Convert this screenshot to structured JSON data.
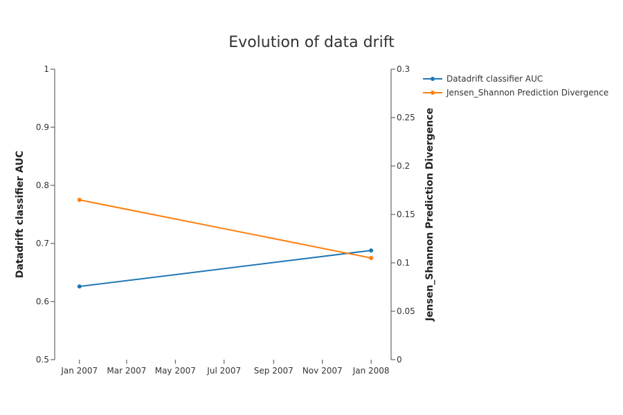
{
  "chart_data": {
    "type": "line",
    "title": "Evolution of data drift",
    "x": [
      "2007-01-01",
      "2008-01-01"
    ],
    "x_range": [
      "2006-12-01",
      "2008-01-26"
    ],
    "x_ticks": [
      {
        "date": "2007-01-01",
        "label": "Jan 2007"
      },
      {
        "date": "2007-03-01",
        "label": "Mar 2007"
      },
      {
        "date": "2007-05-01",
        "label": "May 2007"
      },
      {
        "date": "2007-07-01",
        "label": "Jul 2007"
      },
      {
        "date": "2007-09-01",
        "label": "Sep 2007"
      },
      {
        "date": "2007-11-01",
        "label": "Nov 2007"
      },
      {
        "date": "2008-01-01",
        "label": "Jan 2008"
      }
    ],
    "y_left": {
      "label": "Datadrift classifier AUC",
      "range": [
        0.5,
        1
      ],
      "ticks": [
        0.5,
        0.6,
        0.7,
        0.8,
        0.9,
        1
      ],
      "tick_labels": [
        "0.5",
        "0.6",
        "0.7",
        "0.8",
        "0.9",
        "1"
      ]
    },
    "y_right": {
      "label": "Jensen_Shannon Prediction Divergence",
      "range": [
        0,
        0.3
      ],
      "ticks": [
        0,
        0.05,
        0.1,
        0.15,
        0.2,
        0.25,
        0.3
      ],
      "tick_labels": [
        "0",
        "0.05",
        "0.1",
        "0.15",
        "0.2",
        "0.25",
        "0.3"
      ]
    },
    "series": [
      {
        "name": "Datadrift classifier AUC",
        "axis": "left",
        "color": "#1f77b4",
        "values": [
          0.626,
          0.688
        ]
      },
      {
        "name": "Jensen_Shannon Prediction Divergence",
        "axis": "right",
        "color": "#ff7f0e",
        "values": [
          0.165,
          0.105
        ]
      }
    ],
    "grid": false,
    "legend_position": "top-right"
  }
}
